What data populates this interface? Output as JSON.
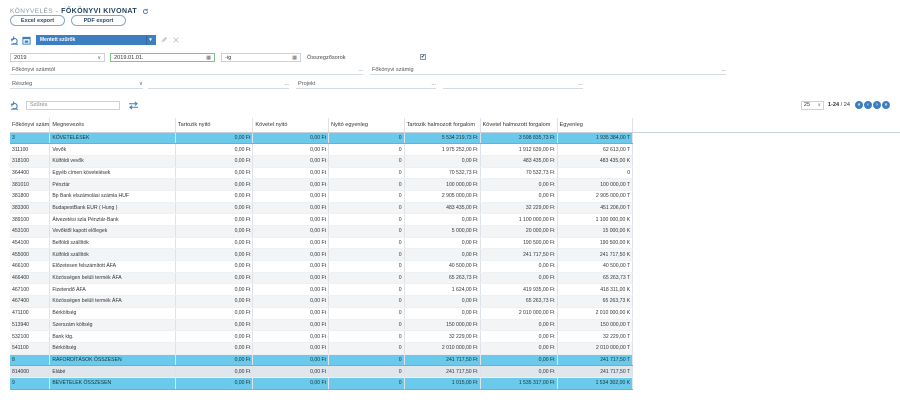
{
  "header": {
    "breadcrumb": "KÖNYVELÉS",
    "separator": "-",
    "title": "FŐKÖNYVI KIVONAT"
  },
  "buttons": {
    "excel": "Excel export",
    "pdf": "PDF export"
  },
  "toolbar": {
    "saved_filter": "Mentett szűrők"
  },
  "filters": {
    "year": "2019",
    "date_from": "2019.01.01.",
    "date_to_prefix": "-ig",
    "totals_label": "Összegzősorok",
    "totals_checked": "✔",
    "ledger_from_placeholder": "Főkönyvi számtól",
    "ledger_number_placeholder": "Főkönyvi számig",
    "part_placeholder": "Részleg",
    "project_placeholder": "Projekt",
    "dots": "..."
  },
  "search": {
    "placeholder": "Szűrés"
  },
  "pager": {
    "page_size": "25",
    "range": "1-24",
    "total": "24"
  },
  "columns": [
    "Főkönyvi szám",
    "Megnevezés",
    "Tartozik nyitó",
    "Követel nyitó",
    "Nyitó egyenleg",
    "Tartozik halmozott forgalom",
    "Követel halmozott forgalom",
    "Egyenleg"
  ],
  "rows": [
    {
      "type": "sum",
      "acc": "3",
      "name": "KÖVETELÉSEK",
      "t_open": "0,00 Ft",
      "k_open": "0,00 Ft",
      "open_bal": "0",
      "t_turn": "5 534 219,73 Ft",
      "k_turn": "3 598 835,73 Ft",
      "bal": "1 935 384,00 T"
    },
    {
      "type": "",
      "acc": "311100",
      "name": "Vevők",
      "t_open": "0,00 Ft",
      "k_open": "0,00 Ft",
      "open_bal": "0",
      "t_turn": "1 975 252,00 Ft",
      "k_turn": "1 912 639,00 Ft",
      "bal": "62 613,00 T"
    },
    {
      "type": "",
      "acc": "318100",
      "name": "Külföldi vevők",
      "t_open": "0,00 Ft",
      "k_open": "0,00 Ft",
      "open_bal": "0",
      "t_turn": "0,00 Ft",
      "k_turn": "483 435,00 Ft",
      "bal": "483 435,00 K"
    },
    {
      "type": "",
      "acc": "364400",
      "name": "Egyéb címen követelések",
      "t_open": "0,00 Ft",
      "k_open": "0,00 Ft",
      "open_bal": "0",
      "t_turn": "70 532,73 Ft",
      "k_turn": "70 532,73 Ft",
      "bal": "0"
    },
    {
      "type": "",
      "acc": "381010",
      "name": "Pénztár",
      "t_open": "0,00 Ft",
      "k_open": "0,00 Ft",
      "open_bal": "0",
      "t_turn": "100 000,00 Ft",
      "k_turn": "0,00 Ft",
      "bal": "100 000,00 T"
    },
    {
      "type": "",
      "acc": "381800",
      "name": "Bp Bank elszámolási számla HUF",
      "t_open": "0,00 Ft",
      "k_open": "0,00 Ft",
      "open_bal": "0",
      "t_turn": "2 905 000,00 Ft",
      "k_turn": "0,00 Ft",
      "bal": "2 905 000,00 T"
    },
    {
      "type": "",
      "acc": "383300",
      "name": "BudapestBank EUR ( Hung )",
      "t_open": "0,00 Ft",
      "k_open": "0,00 Ft",
      "open_bal": "0",
      "t_turn": "483 435,00 Ft",
      "k_turn": "32 229,00 Ft",
      "bal": "451 206,00 T"
    },
    {
      "type": "",
      "acc": "389100",
      "name": "Átvezetési szla Pénztár-Bank",
      "t_open": "0,00 Ft",
      "k_open": "0,00 Ft",
      "open_bal": "0",
      "t_turn": "0,00 Ft",
      "k_turn": "1 100 000,00 Ft",
      "bal": "1 100 000,00 K"
    },
    {
      "type": "",
      "acc": "453100",
      "name": "Vevőktől kapott előlegek",
      "t_open": "0,00 Ft",
      "k_open": "0,00 Ft",
      "open_bal": "0",
      "t_turn": "5 000,00 Ft",
      "k_turn": "20 000,00 Ft",
      "bal": "15 000,00 K"
    },
    {
      "type": "",
      "acc": "454100",
      "name": "Belföldi szállítók",
      "t_open": "0,00 Ft",
      "k_open": "0,00 Ft",
      "open_bal": "0",
      "t_turn": "0,00 Ft",
      "k_turn": "190 500,00 Ft",
      "bal": "190 500,00 K"
    },
    {
      "type": "",
      "acc": "455000",
      "name": "Külföldi szállítók",
      "t_open": "0,00 Ft",
      "k_open": "0,00 Ft",
      "open_bal": "0",
      "t_turn": "0,00 Ft",
      "k_turn": "241 717,50 Ft",
      "bal": "241 717,50 K"
    },
    {
      "type": "",
      "acc": "466100",
      "name": "Előzetesen felszámított ÁFA",
      "t_open": "0,00 Ft",
      "k_open": "0,00 Ft",
      "open_bal": "0",
      "t_turn": "40 500,00 Ft",
      "k_turn": "0,00 Ft",
      "bal": "40 500,00 T"
    },
    {
      "type": "",
      "acc": "466400",
      "name": "Közösségen belüli termék ÁFA",
      "t_open": "0,00 Ft",
      "k_open": "0,00 Ft",
      "open_bal": "0",
      "t_turn": "65 263,73 Ft",
      "k_turn": "0,00 Ft",
      "bal": "65 263,73 T"
    },
    {
      "type": "",
      "acc": "467100",
      "name": "Fizetendő ÁFA",
      "t_open": "0,00 Ft",
      "k_open": "0,00 Ft",
      "open_bal": "0",
      "t_turn": "1 624,00 Ft",
      "k_turn": "419 935,00 Ft",
      "bal": "418 311,00 K"
    },
    {
      "type": "",
      "acc": "467400",
      "name": "Közösségen belüli termék ÁFA",
      "t_open": "0,00 Ft",
      "k_open": "0,00 Ft",
      "open_bal": "0",
      "t_turn": "0,00 Ft",
      "k_turn": "65 263,73 Ft",
      "bal": "65 263,73 K"
    },
    {
      "type": "",
      "acc": "471100",
      "name": "Bérköltség",
      "t_open": "0,00 Ft",
      "k_open": "0,00 Ft",
      "open_bal": "0",
      "t_turn": "0,00 Ft",
      "k_turn": "2 010 000,00 Ft",
      "bal": "2 010 000,00 K"
    },
    {
      "type": "",
      "acc": "513940",
      "name": "Szerszám költség",
      "t_open": "0,00 Ft",
      "k_open": "0,00 Ft",
      "open_bal": "0",
      "t_turn": "150 000,00 Ft",
      "k_turn": "0,00 Ft",
      "bal": "150 000,00 T"
    },
    {
      "type": "",
      "acc": "532100",
      "name": "Bank ktg.",
      "t_open": "0,00 Ft",
      "k_open": "0,00 Ft",
      "open_bal": "0",
      "t_turn": "32 229,00 Ft",
      "k_turn": "0,00 Ft",
      "bal": "32 229,00 T"
    },
    {
      "type": "",
      "acc": "541100",
      "name": "Bérköltség",
      "t_open": "0,00 Ft",
      "k_open": "0,00 Ft",
      "open_bal": "0",
      "t_turn": "2 010 000,00 Ft",
      "k_turn": "0,00 Ft",
      "bal": "2 010 000,00 T"
    },
    {
      "type": "sum",
      "acc": "8",
      "name": "RÁFORDÍTÁSOK ÖSSZESEN",
      "t_open": "0,00 Ft",
      "k_open": "0,00 Ft",
      "open_bal": "0",
      "t_turn": "241 717,50 Ft",
      "k_turn": "0,00 Ft",
      "bal": "241 717,50 T"
    },
    {
      "type": "sum2",
      "acc": "814000",
      "name": "Elábé",
      "t_open": "0,00 Ft",
      "k_open": "0,00 Ft",
      "open_bal": "0",
      "t_turn": "241 717,50 Ft",
      "k_turn": "0,00 Ft",
      "bal": "241 717,50 T"
    },
    {
      "type": "sum",
      "acc": "9",
      "name": "BEVÉTELEK ÖSSZESEN",
      "t_open": "0,00 Ft",
      "k_open": "0,00 Ft",
      "open_bal": "0",
      "t_turn": "1 015,00 Ft",
      "k_turn": "1 535 317,00 Ft",
      "bal": "1 534 302,00 K"
    }
  ],
  "colors": {
    "accent": "#3c7ec0",
    "sum_row": "#6bcaec"
  }
}
